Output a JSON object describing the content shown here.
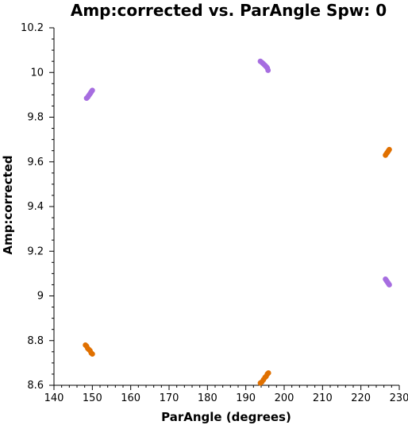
{
  "chart_data": {
    "type": "scatter",
    "title": "Amp:corrected vs. ParAngle Spw: 0",
    "xlabel": "ParAngle (degrees)",
    "ylabel": "Amp:corrected",
    "xlim": [
      140,
      230
    ],
    "ylim": [
      8.6,
      10.2
    ],
    "x_ticks": [
      "140",
      "150",
      "160",
      "170",
      "180",
      "190",
      "200",
      "210",
      "220",
      "230"
    ],
    "y_ticks": [
      "8.6",
      "8.8",
      "9",
      "9.2",
      "9.4",
      "9.6",
      "9.8",
      "10",
      "10.2"
    ],
    "grid": false,
    "legend": "none",
    "series": [
      {
        "color": "#a66de0",
        "points": [
          [
            148.5,
            9.885
          ],
          [
            148.8,
            9.89
          ],
          [
            149.0,
            9.895
          ],
          [
            149.2,
            9.9
          ],
          [
            149.4,
            9.905
          ],
          [
            149.6,
            9.91
          ],
          [
            149.8,
            9.915
          ],
          [
            150.0,
            9.92
          ],
          [
            193.8,
            10.05
          ],
          [
            194.2,
            10.045
          ],
          [
            194.5,
            10.04
          ],
          [
            194.8,
            10.035
          ],
          [
            195.1,
            10.03
          ],
          [
            195.4,
            10.025
          ],
          [
            195.6,
            10.02
          ],
          [
            195.8,
            10.01
          ],
          [
            226.4,
            9.075
          ],
          [
            226.6,
            9.07
          ],
          [
            226.8,
            9.065
          ],
          [
            227.0,
            9.06
          ],
          [
            227.2,
            9.055
          ],
          [
            227.4,
            9.05
          ]
        ]
      },
      {
        "color": "#e07000",
        "points": [
          [
            148.2,
            8.78
          ],
          [
            148.5,
            8.775
          ],
          [
            148.8,
            8.765
          ],
          [
            149.1,
            8.76
          ],
          [
            149.4,
            8.755
          ],
          [
            149.7,
            8.745
          ],
          [
            150.0,
            8.74
          ],
          [
            193.8,
            8.61
          ],
          [
            194.2,
            8.615
          ],
          [
            194.6,
            8.625
          ],
          [
            195.0,
            8.635
          ],
          [
            195.3,
            8.64
          ],
          [
            195.6,
            8.65
          ],
          [
            195.9,
            8.655
          ],
          [
            226.4,
            9.63
          ],
          [
            226.6,
            9.635
          ],
          [
            226.8,
            9.64
          ],
          [
            227.0,
            9.645
          ],
          [
            227.2,
            9.65
          ],
          [
            227.4,
            9.655
          ]
        ]
      }
    ]
  }
}
